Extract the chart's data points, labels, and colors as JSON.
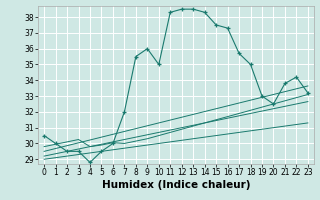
{
  "title": "",
  "xlabel": "Humidex (Indice chaleur)",
  "background_color": "#cfe8e4",
  "line_color": "#1a7a6e",
  "grid_color": "#ffffff",
  "x_values": [
    0,
    1,
    2,
    3,
    4,
    5,
    6,
    7,
    8,
    9,
    10,
    11,
    12,
    13,
    14,
    15,
    16,
    17,
    18,
    19,
    20,
    21,
    22,
    23
  ],
  "main_y": [
    30.5,
    30.0,
    29.5,
    29.5,
    28.8,
    29.5,
    30.0,
    32.0,
    35.5,
    36.0,
    35.0,
    38.3,
    38.5,
    38.5,
    38.3,
    37.5,
    37.3,
    35.7,
    35.0,
    33.0,
    32.5,
    33.8,
    34.2,
    33.2
  ],
  "trend_lines": [
    [
      29.0,
      29.1,
      29.2,
      29.3,
      29.4,
      29.5,
      29.6,
      29.7,
      29.8,
      29.9,
      30.0,
      30.1,
      30.2,
      30.3,
      30.4,
      30.5,
      30.6,
      30.7,
      30.8,
      30.9,
      31.0,
      31.1,
      31.2,
      31.3
    ],
    [
      29.2,
      29.35,
      29.5,
      29.65,
      29.8,
      29.95,
      30.1,
      30.25,
      30.4,
      30.55,
      30.7,
      30.85,
      31.0,
      31.15,
      31.3,
      31.45,
      31.6,
      31.75,
      31.9,
      32.05,
      32.2,
      32.35,
      32.5,
      32.65
    ],
    [
      29.5,
      29.68,
      29.86,
      30.04,
      30.22,
      30.4,
      30.58,
      30.76,
      30.94,
      31.12,
      31.3,
      31.48,
      31.66,
      31.84,
      32.02,
      32.2,
      32.38,
      32.56,
      32.74,
      32.92,
      33.1,
      33.28,
      33.46,
      33.64
    ],
    [
      29.8,
      29.95,
      30.1,
      30.25,
      29.8,
      29.9,
      30.05,
      30.0,
      30.15,
      30.3,
      30.5,
      30.7,
      30.9,
      31.1,
      31.3,
      31.5,
      31.7,
      31.9,
      32.1,
      32.3,
      32.5,
      32.7,
      32.9,
      33.1
    ]
  ],
  "ylim": [
    28.7,
    38.7
  ],
  "xlim": [
    -0.5,
    23.5
  ],
  "yticks": [
    29,
    30,
    31,
    32,
    33,
    34,
    35,
    36,
    37,
    38
  ],
  "xtick_labels": [
    "0",
    "1",
    "2",
    "3",
    "4",
    "5",
    "6",
    "7",
    "8",
    "9",
    "10",
    "11",
    "12",
    "13",
    "14",
    "15",
    "16",
    "17",
    "18",
    "19",
    "20",
    "21",
    "22",
    "23"
  ],
  "tick_fontsize": 5.5,
  "label_fontsize": 7.5
}
